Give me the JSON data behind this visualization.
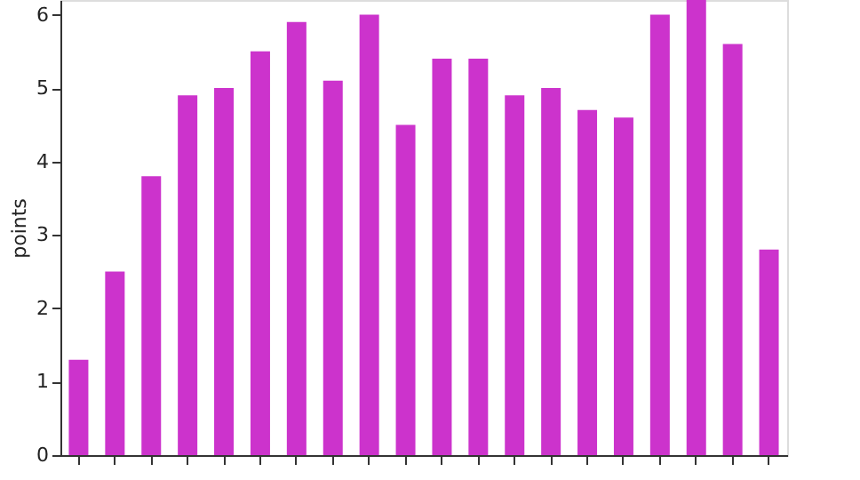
{
  "chart_data": {
    "type": "bar",
    "ylabel": "points",
    "categories": [
      null,
      null,
      null,
      null,
      null,
      null,
      null,
      null,
      null,
      null,
      null,
      null,
      null,
      null,
      null,
      null,
      null,
      null,
      null,
      null
    ],
    "values": [
      1.3,
      2.5,
      3.8,
      4.9,
      5.0,
      5.5,
      5.9,
      5.1,
      6.0,
      4.5,
      5.4,
      5.4,
      4.9,
      5.0,
      4.7,
      4.6,
      6.0,
      6.2,
      5.6,
      2.8
    ],
    "color": "#cc33cc",
    "ylim": [
      0,
      6.2
    ],
    "yticks": [
      0,
      1,
      2,
      3,
      4,
      5,
      6
    ],
    "grid": false
  }
}
